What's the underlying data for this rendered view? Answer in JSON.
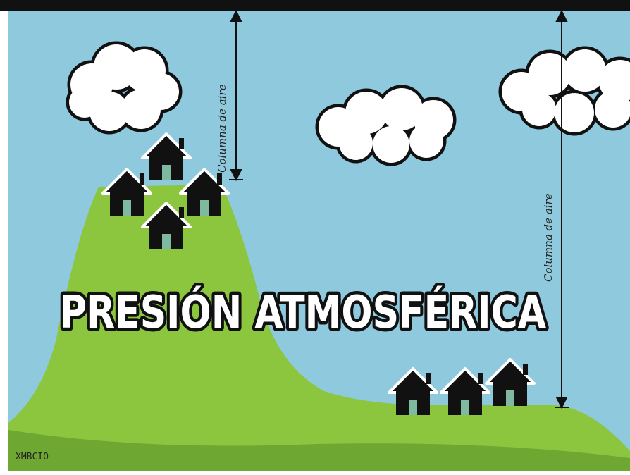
{
  "title": "PRESIÓN ATMOSFÉRICA",
  "labels": [
    "Columna de aire",
    "Columna de aire"
  ],
  "signature": "XMBCIO"
}
